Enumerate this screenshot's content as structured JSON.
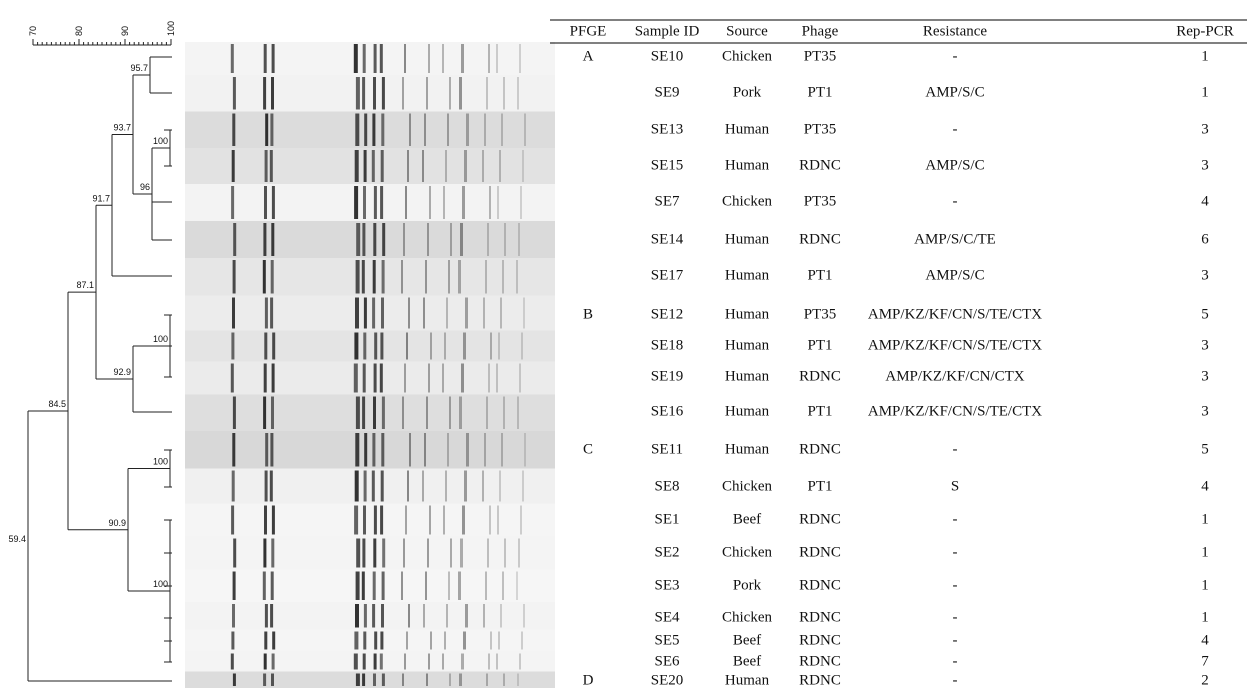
{
  "scale": {
    "ticks": [
      70,
      80,
      90,
      100
    ]
  },
  "dendrogram": {
    "nodes": [
      95.7,
      93.7,
      100,
      96,
      91.7,
      87.1,
      100,
      92.9,
      84.5,
      100,
      90.9,
      100,
      59.4
    ]
  },
  "table": {
    "headers": [
      "PFGE",
      "Sample ID",
      "Source",
      "Phage",
      "Resistance",
      "Rep-PCR"
    ],
    "groups": [
      {
        "pfge": "A",
        "rows": [
          [
            "SE10",
            "Chicken",
            "PT35",
            "-",
            1
          ],
          [
            "SE9",
            "Pork",
            "PT1",
            "AMP/S/C",
            1
          ],
          [
            "SE13",
            "Human",
            "PT35",
            "-",
            3
          ],
          [
            "SE15",
            "Human",
            "RDNC",
            "AMP/S/C",
            3
          ],
          [
            "SE7",
            "Chicken",
            "PT35",
            "-",
            4
          ],
          [
            "SE14",
            "Human",
            "RDNC",
            "AMP/S/C/TE",
            6
          ],
          [
            "SE17",
            "Human",
            "PT1",
            "AMP/S/C",
            3
          ]
        ]
      },
      {
        "pfge": "B",
        "rows": [
          [
            "SE12",
            "Human",
            "PT35",
            "AMP/KZ/KF/CN/S/TE/CTX",
            5
          ],
          [
            "SE18",
            "Human",
            "PT1",
            "AMP/KZ/KF/CN/S/TE/CTX",
            3
          ],
          [
            "SE19",
            "Human",
            "RDNC",
            "AMP/KZ/KF/CN/CTX",
            3
          ],
          [
            "SE16",
            "Human",
            "PT1",
            "AMP/KZ/KF/CN/S/TE/CTX",
            3
          ]
        ]
      },
      {
        "pfge": "C",
        "rows": [
          [
            "SE11",
            "Human",
            "RDNC",
            "-",
            5
          ],
          [
            "SE8",
            "Chicken",
            "PT1",
            "S",
            4
          ],
          [
            "SE1",
            "Beef",
            "RDNC",
            "-",
            1
          ],
          [
            "SE2",
            "Chicken",
            "RDNC",
            "-",
            1
          ],
          [
            "SE3",
            "Pork",
            "RDNC",
            "-",
            1
          ],
          [
            "SE4",
            "Chicken",
            "RDNC",
            "-",
            1
          ],
          [
            "SE5",
            "Beef",
            "RDNC",
            "-",
            4
          ],
          [
            "SE6",
            "Beef",
            "RDNC",
            "-",
            7
          ]
        ]
      },
      {
        "pfge": "D",
        "rows": [
          [
            "SE20",
            "Human",
            "RDNC",
            "-",
            2
          ]
        ]
      }
    ]
  }
}
